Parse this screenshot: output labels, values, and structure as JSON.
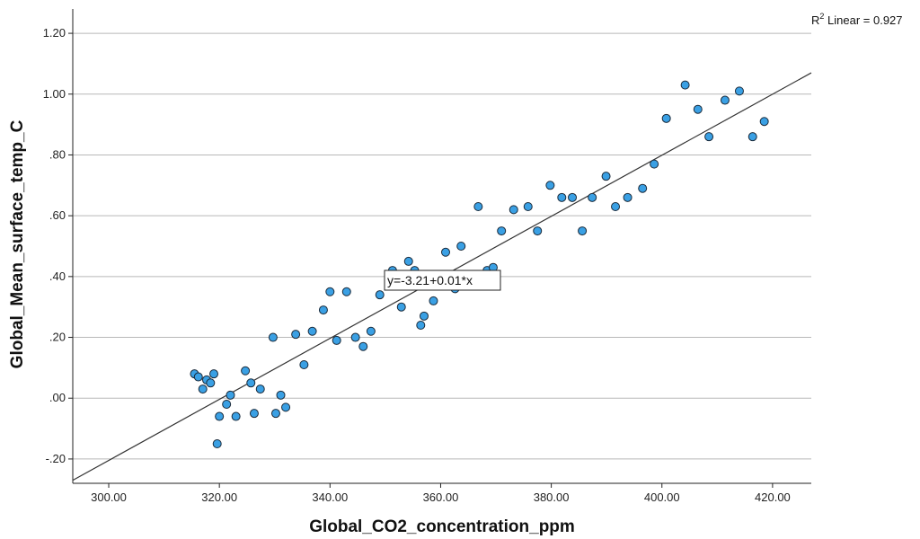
{
  "chart_data": {
    "type": "scatter",
    "title": "",
    "xlabel": "Global_CO2_concentration_ppm",
    "ylabel": "Global_Mean_surface_temp_C",
    "xlim": [
      293.5,
      427
    ],
    "ylim": [
      -0.28,
      1.28
    ],
    "x_ticks": [
      300,
      320,
      340,
      360,
      380,
      400,
      420
    ],
    "x_tick_labels": [
      "300.00",
      "320.00",
      "340.00",
      "360.00",
      "380.00",
      "400.00",
      "420.00"
    ],
    "y_ticks": [
      -0.2,
      0,
      0.2,
      0.4,
      0.6,
      0.8,
      1.0,
      1.2
    ],
    "y_tick_labels": [
      "-.20",
      ".00",
      ".20",
      ".40",
      ".60",
      ".80",
      "1.00",
      "1.20"
    ],
    "grid": "horizontal",
    "marker_color": "#3aa0e4",
    "marker_edge_color": "#1a2a3a",
    "line_color": "#333333",
    "fit": {
      "intercept": -3.21,
      "slope": 0.01,
      "x_start": 293.5,
      "y_start": -0.27,
      "x_end": 427,
      "y_end": 1.07,
      "equation_label": "y=-3.21+0.01*x",
      "r2_label": "R² Linear = 0.927",
      "r2_prefix": "R",
      "r2_sup": "2",
      "r2_suffix": " Linear = 0.927"
    },
    "points": [
      [
        315.5,
        0.08
      ],
      [
        316.2,
        0.07
      ],
      [
        317.0,
        0.03
      ],
      [
        317.7,
        0.06
      ],
      [
        318.4,
        0.05
      ],
      [
        319.0,
        0.08
      ],
      [
        319.6,
        -0.15
      ],
      [
        320.0,
        -0.06
      ],
      [
        321.3,
        -0.02
      ],
      [
        322.0,
        0.01
      ],
      [
        323.0,
        -0.06
      ],
      [
        324.7,
        0.09
      ],
      [
        325.7,
        0.05
      ],
      [
        326.3,
        -0.05
      ],
      [
        327.4,
        0.03
      ],
      [
        329.7,
        0.2
      ],
      [
        330.2,
        -0.05
      ],
      [
        331.1,
        0.01
      ],
      [
        332.0,
        -0.03
      ],
      [
        333.8,
        0.21
      ],
      [
        335.3,
        0.11
      ],
      [
        336.8,
        0.22
      ],
      [
        338.8,
        0.29
      ],
      [
        340.0,
        0.35
      ],
      [
        341.2,
        0.19
      ],
      [
        343.0,
        0.35
      ],
      [
        344.6,
        0.2
      ],
      [
        346.0,
        0.17
      ],
      [
        347.4,
        0.22
      ],
      [
        349.0,
        0.34
      ],
      [
        351.3,
        0.42
      ],
      [
        352.9,
        0.3
      ],
      [
        354.2,
        0.45
      ],
      [
        355.3,
        0.42
      ],
      [
        356.4,
        0.24
      ],
      [
        357.0,
        0.27
      ],
      [
        358.7,
        0.32
      ],
      [
        360.9,
        0.48
      ],
      [
        362.6,
        0.36
      ],
      [
        363.7,
        0.5
      ],
      [
        366.8,
        0.63
      ],
      [
        368.4,
        0.42
      ],
      [
        369.5,
        0.43
      ],
      [
        371.0,
        0.55
      ],
      [
        373.2,
        0.62
      ],
      [
        375.8,
        0.63
      ],
      [
        377.5,
        0.55
      ],
      [
        379.8,
        0.7
      ],
      [
        381.9,
        0.66
      ],
      [
        383.8,
        0.66
      ],
      [
        385.6,
        0.55
      ],
      [
        387.4,
        0.66
      ],
      [
        389.9,
        0.73
      ],
      [
        391.6,
        0.63
      ],
      [
        393.8,
        0.66
      ],
      [
        396.5,
        0.69
      ],
      [
        398.6,
        0.77
      ],
      [
        400.8,
        0.92
      ],
      [
        404.2,
        1.03
      ],
      [
        406.5,
        0.95
      ],
      [
        408.5,
        0.86
      ],
      [
        411.4,
        0.98
      ],
      [
        414.0,
        1.01
      ],
      [
        416.4,
        0.86
      ],
      [
        418.5,
        0.91
      ]
    ]
  }
}
